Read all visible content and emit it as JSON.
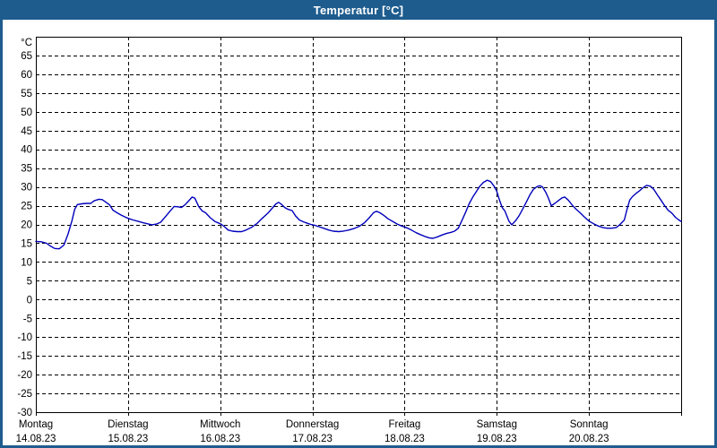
{
  "window": {
    "title": "Temperatur [°C]"
  },
  "colors": {
    "titlebar_bg": "#1e5c8e",
    "window_border": "#1e5c8e",
    "title_text": "#ffffff",
    "plot_bg": "#ffffff",
    "grid": "#000000",
    "axis": "#000000",
    "label_text": "#000000",
    "series_line": "#0000bb"
  },
  "chart_data": {
    "type": "line",
    "title": "Temperatur [°C]",
    "y_unit_label": "°C",
    "ylim": [
      -30,
      70
    ],
    "y_tick_step": 5,
    "y_tick_labels": [
      65,
      60,
      55,
      50,
      45,
      40,
      35,
      30,
      25,
      20,
      15,
      10,
      5,
      0,
      -5,
      -10,
      -15,
      -20,
      -25,
      -30
    ],
    "xlim_hours": [
      0,
      168
    ],
    "grid": "dashed",
    "legend": "none",
    "x_days": [
      {
        "name": "Montag",
        "date": "14.08.23"
      },
      {
        "name": "Dienstag",
        "date": "15.08.23"
      },
      {
        "name": "Mittwoch",
        "date": "16.08.23"
      },
      {
        "name": "Donnerstag",
        "date": "17.08.23"
      },
      {
        "name": "Freitag",
        "date": "18.08.23"
      },
      {
        "name": "Samstag",
        "date": "19.08.23"
      },
      {
        "name": "Sonntag",
        "date": "20.08.23"
      }
    ],
    "series": [
      {
        "name": "Temperatur",
        "unit": "°C",
        "color": "#0000bb",
        "points_hour_temp": [
          [
            0,
            15.5
          ],
          [
            1.4,
            15.4
          ],
          [
            2.8,
            15.0
          ],
          [
            3.7,
            14.3
          ],
          [
            4.9,
            13.6
          ],
          [
            6.1,
            13.5
          ],
          [
            7.3,
            14.5
          ],
          [
            8.4,
            17.5
          ],
          [
            9.4,
            21.0
          ],
          [
            10.1,
            24.0
          ],
          [
            10.8,
            25.3
          ],
          [
            11.9,
            25.5
          ],
          [
            13.1,
            25.6
          ],
          [
            14.3,
            25.6
          ],
          [
            15.2,
            26.3
          ],
          [
            16.4,
            26.7
          ],
          [
            17.3,
            26.6
          ],
          [
            18.3,
            25.9
          ],
          [
            19.2,
            25.2
          ],
          [
            20.1,
            23.8
          ],
          [
            21.3,
            23.0
          ],
          [
            22.2,
            22.5
          ],
          [
            23.2,
            22.0
          ],
          [
            24.1,
            21.6
          ],
          [
            25.3,
            21.2
          ],
          [
            26.7,
            20.8
          ],
          [
            27.8,
            20.5
          ],
          [
            29.0,
            20.2
          ],
          [
            30.2,
            19.9
          ],
          [
            31.4,
            20.1
          ],
          [
            32.5,
            20.6
          ],
          [
            33.7,
            22.0
          ],
          [
            34.9,
            23.5
          ],
          [
            36.0,
            24.8
          ],
          [
            37.0,
            24.7
          ],
          [
            37.9,
            24.5
          ],
          [
            38.8,
            25.2
          ],
          [
            39.8,
            26.3
          ],
          [
            40.7,
            27.3
          ],
          [
            41.4,
            27.0
          ],
          [
            42.4,
            24.8
          ],
          [
            43.3,
            23.6
          ],
          [
            44.2,
            23.1
          ],
          [
            45.4,
            21.8
          ],
          [
            46.6,
            20.8
          ],
          [
            47.5,
            20.4
          ],
          [
            48.2,
            20.1
          ],
          [
            49.1,
            19.4
          ],
          [
            50.1,
            18.5
          ],
          [
            51.2,
            18.2
          ],
          [
            52.4,
            18.1
          ],
          [
            53.6,
            18.1
          ],
          [
            54.7,
            18.5
          ],
          [
            56.1,
            19.2
          ],
          [
            57.5,
            20.2
          ],
          [
            58.9,
            21.6
          ],
          [
            60.4,
            23.0
          ],
          [
            61.5,
            24.3
          ],
          [
            62.5,
            25.5
          ],
          [
            63.2,
            25.9
          ],
          [
            63.9,
            25.4
          ],
          [
            64.8,
            24.5
          ],
          [
            65.7,
            24.0
          ],
          [
            66.7,
            23.7
          ],
          [
            67.6,
            22.3
          ],
          [
            68.6,
            21.2
          ],
          [
            69.7,
            20.7
          ],
          [
            70.7,
            20.3
          ],
          [
            71.6,
            20.0
          ],
          [
            72.5,
            19.8
          ],
          [
            73.7,
            19.4
          ],
          [
            74.9,
            19.0
          ],
          [
            76.3,
            18.5
          ],
          [
            77.4,
            18.2
          ],
          [
            78.9,
            18.1
          ],
          [
            80.0,
            18.2
          ],
          [
            81.4,
            18.5
          ],
          [
            82.8,
            18.9
          ],
          [
            84.2,
            19.5
          ],
          [
            85.6,
            20.5
          ],
          [
            86.8,
            21.8
          ],
          [
            88.0,
            23.2
          ],
          [
            88.7,
            23.5
          ],
          [
            89.6,
            23.1
          ],
          [
            90.6,
            22.4
          ],
          [
            91.7,
            21.5
          ],
          [
            92.9,
            20.8
          ],
          [
            94.1,
            20.1
          ],
          [
            95.2,
            19.6
          ],
          [
            96.6,
            19.1
          ],
          [
            97.8,
            18.5
          ],
          [
            99.0,
            17.8
          ],
          [
            100.1,
            17.3
          ],
          [
            101.3,
            16.8
          ],
          [
            102.5,
            16.4
          ],
          [
            103.4,
            16.3
          ],
          [
            104.6,
            16.7
          ],
          [
            105.8,
            17.2
          ],
          [
            106.9,
            17.6
          ],
          [
            108.1,
            17.9
          ],
          [
            109.0,
            18.2
          ],
          [
            110.0,
            19.0
          ],
          [
            110.9,
            21.0
          ],
          [
            111.9,
            23.3
          ],
          [
            112.8,
            25.5
          ],
          [
            113.7,
            27.2
          ],
          [
            114.7,
            28.8
          ],
          [
            115.6,
            30.2
          ],
          [
            116.5,
            31.2
          ],
          [
            117.5,
            31.8
          ],
          [
            118.4,
            31.4
          ],
          [
            119.3,
            30.2
          ],
          [
            120.0,
            28.8
          ],
          [
            120.7,
            26.5
          ],
          [
            121.4,
            24.5
          ],
          [
            122.1,
            23.6
          ],
          [
            122.5,
            22.6
          ],
          [
            123.2,
            20.8
          ],
          [
            123.9,
            19.9
          ],
          [
            124.9,
            21.0
          ],
          [
            125.8,
            22.3
          ],
          [
            126.7,
            24.0
          ],
          [
            127.7,
            26.0
          ],
          [
            128.6,
            27.8
          ],
          [
            129.5,
            29.3
          ],
          [
            130.5,
            30.1
          ],
          [
            131.2,
            30.3
          ],
          [
            131.9,
            30.0
          ],
          [
            132.8,
            28.5
          ],
          [
            133.5,
            26.9
          ],
          [
            134.2,
            25.0
          ],
          [
            135.1,
            25.6
          ],
          [
            136.1,
            26.4
          ],
          [
            137.0,
            27.1
          ],
          [
            137.7,
            27.3
          ],
          [
            138.6,
            26.5
          ],
          [
            139.6,
            25.2
          ],
          [
            140.5,
            24.2
          ],
          [
            141.7,
            23.1
          ],
          [
            142.8,
            22.0
          ],
          [
            144.0,
            20.9
          ],
          [
            145.2,
            20.2
          ],
          [
            146.4,
            19.6
          ],
          [
            147.6,
            19.2
          ],
          [
            148.7,
            19.0
          ],
          [
            149.9,
            19.0
          ],
          [
            151.1,
            19.2
          ],
          [
            152.0,
            19.9
          ],
          [
            153.2,
            21.2
          ],
          [
            153.9,
            24.0
          ],
          [
            154.6,
            26.5
          ],
          [
            155.3,
            27.4
          ],
          [
            156.2,
            28.2
          ],
          [
            157.2,
            29.0
          ],
          [
            158.1,
            29.8
          ],
          [
            159.0,
            30.4
          ],
          [
            160.0,
            30.2
          ],
          [
            160.9,
            29.3
          ],
          [
            161.8,
            27.9
          ],
          [
            162.8,
            26.4
          ],
          [
            163.7,
            25.0
          ],
          [
            164.6,
            23.8
          ],
          [
            165.6,
            23.0
          ],
          [
            166.5,
            21.9
          ],
          [
            167.4,
            21.2
          ],
          [
            168.0,
            20.8
          ]
        ]
      }
    ]
  }
}
